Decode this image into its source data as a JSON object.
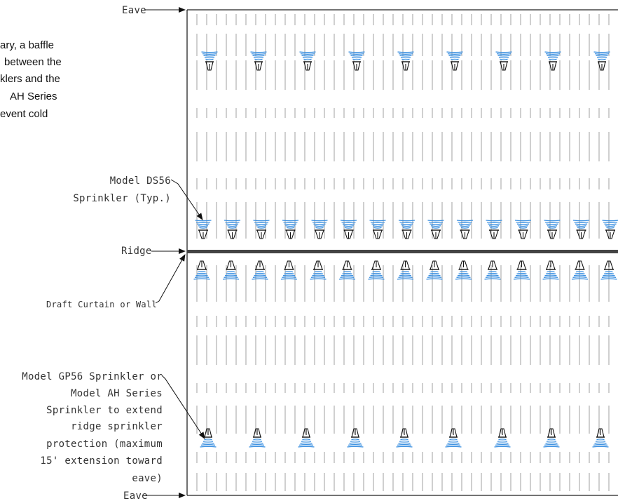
{
  "labels": {
    "eave_top": "Eave",
    "eave_bottom": "Eave",
    "ridge": "Ridge",
    "draft_curtain": "Draft Curtain or Wall",
    "ds56": [
      "Model DS56",
      "Sprinkler (Typ.)"
    ],
    "gp56": [
      "Model GP56 Sprinkler or",
      "Model AH Series",
      "Sprinkler to extend",
      "ridge sprinkler",
      "protection (maximum",
      "15' extension toward",
      "eave)"
    ]
  },
  "note_lines": [
    "ary, a baffle",
    "between the",
    "klers and the",
    "AH Series",
    "event cold"
  ],
  "colors": {
    "spray": "#3a8fe0",
    "lines": "#888888",
    "ridge": "#444444",
    "frame": "#222222"
  }
}
